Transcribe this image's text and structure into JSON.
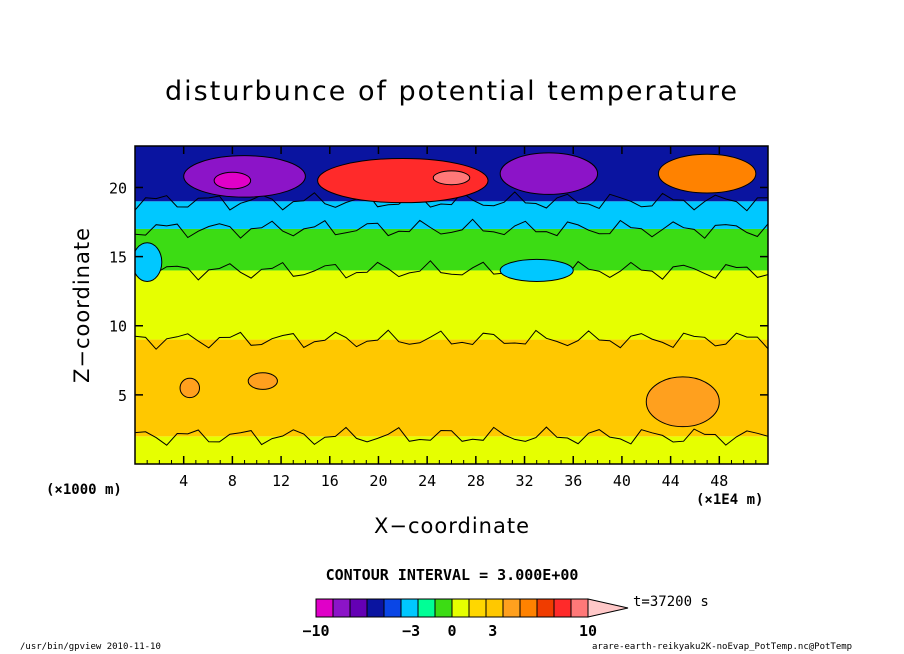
{
  "title": "disturbunce of potential temperature",
  "xlabel": "X−coordinate",
  "ylabel": "Z−coordinate",
  "x_unit_left": "(×1000 m)",
  "x_unit_right": "(×1E4 m)",
  "contour_interval": "CONTOUR INTERVAL = 3.000E+00",
  "time_label": "t=37200 s",
  "footer_left": "/usr/bin/gpview   2010-11-10",
  "footer_right": "arare-earth-reikyaku2K-noEvap_PotTemp.nc@PotTemp",
  "colorbar": {
    "colors": [
      "#e000c8",
      "#8c14c8",
      "#6400b4",
      "#0a14a0",
      "#0a46e6",
      "#00c8ff",
      "#00ff96",
      "#3cdc14",
      "#e6ff00",
      "#ffd700",
      "#ffc800",
      "#ffa01e",
      "#ff8200",
      "#f03c00",
      "#ff2a2a",
      "#ff7878",
      "#ffc8c8"
    ],
    "tick_labels": [
      {
        "value": -10,
        "label": "−10"
      },
      {
        "value": -3,
        "label": "−3"
      },
      {
        "value": 0,
        "label": "0"
      },
      {
        "value": 3,
        "label": "3"
      },
      {
        "value": 10,
        "label": "10"
      }
    ]
  },
  "chart_data": {
    "type": "heatmap",
    "title": "disturbunce of potential temperature",
    "xlabel": "X−coordinate",
    "ylabel": "Z−coordinate",
    "x_unit": "×1000 m",
    "xlim": [
      0,
      52
    ],
    "ylim": [
      0,
      23
    ],
    "x_ticks": [
      4,
      8,
      12,
      16,
      20,
      24,
      28,
      32,
      36,
      40,
      44,
      48
    ],
    "y_ticks": [
      5,
      10,
      15,
      20
    ],
    "contour_interval": 3.0,
    "time_s": 37200,
    "bands": [
      {
        "z": [
          0,
          2
        ],
        "value": 1,
        "color": "#e6ff00"
      },
      {
        "z": [
          2,
          9
        ],
        "value": 3,
        "color": "#ffc800"
      },
      {
        "z": [
          9,
          14
        ],
        "value": 0.5,
        "color": "#e6ff00"
      },
      {
        "z": [
          14,
          17
        ],
        "value": -1,
        "color": "#3cdc14"
      },
      {
        "z": [
          17,
          19
        ],
        "value": -2,
        "color": "#00c8ff"
      },
      {
        "z": [
          19,
          23
        ],
        "value": -4,
        "color": "#0a14a0"
      }
    ],
    "features": [
      {
        "x": 9,
        "z": 20.8,
        "value": -9,
        "color": "#8c14c8",
        "rx": 5,
        "rz": 1.5
      },
      {
        "x": 8,
        "z": 20.5,
        "value": -10,
        "color": "#e000c8",
        "rx": 1.5,
        "rz": 0.6
      },
      {
        "x": 22,
        "z": 20.5,
        "value": 9,
        "color": "#ff2a2a",
        "rx": 7,
        "rz": 1.6
      },
      {
        "x": 26,
        "z": 20.7,
        "value": 11,
        "color": "#ff7878",
        "rx": 1.5,
        "rz": 0.5
      },
      {
        "x": 34,
        "z": 21,
        "value": -9,
        "color": "#8c14c8",
        "rx": 4,
        "rz": 1.5
      },
      {
        "x": 47,
        "z": 21,
        "value": 8,
        "color": "#ff8200",
        "rx": 4,
        "rz": 1.4
      },
      {
        "x": 1,
        "z": 14.6,
        "value": -3,
        "color": "#00c8ff",
        "rx": 1.2,
        "rz": 1.4
      },
      {
        "x": 33,
        "z": 14,
        "value": -3,
        "color": "#00c8ff",
        "rx": 3,
        "rz": 0.8
      },
      {
        "x": 45,
        "z": 4.5,
        "value": 5,
        "color": "#ffa01e",
        "rx": 3,
        "rz": 1.8
      },
      {
        "x": 4.5,
        "z": 5.5,
        "value": 5,
        "color": "#ffa01e",
        "rx": 0.8,
        "rz": 0.7
      },
      {
        "x": 10.5,
        "z": 6,
        "value": 5,
        "color": "#ffa01e",
        "rx": 1.2,
        "rz": 0.6
      }
    ]
  }
}
